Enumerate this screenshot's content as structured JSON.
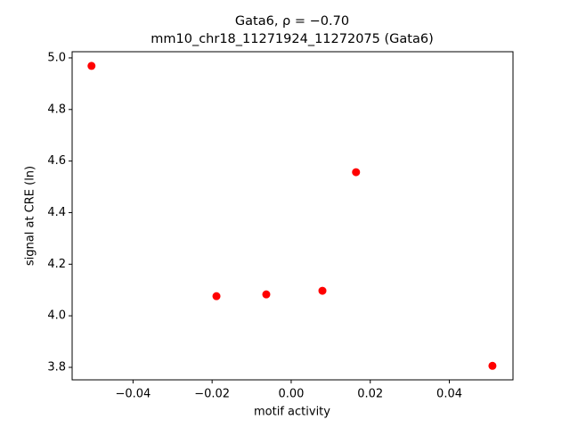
{
  "chart_data": {
    "type": "scatter",
    "title": "Gata6, ρ = −0.70",
    "subtitle": "mm10_chr18_11271924_11272075 (Gata6)",
    "x_label": "motif activity",
    "y_label": "signal at CRE (ln)",
    "x": [
      -0.0505,
      -0.0189,
      -0.0063,
      0.0079,
      0.0164,
      0.0509
    ],
    "values": [
      4.969,
      4.076,
      4.083,
      4.097,
      4.557,
      3.806
    ],
    "color": "#ff0000",
    "xlim": [
      -0.0554,
      0.0561
    ],
    "ylim": [
      3.7516,
      5.024
    ],
    "xticks": [
      {
        "value": -0.04,
        "label": "−0.04"
      },
      {
        "value": -0.02,
        "label": "−0.02"
      },
      {
        "value": 0,
        "label": "0.00"
      },
      0.02,
      0.04
    ],
    "yticks": [
      3.8,
      {
        "value": 4,
        "label": "4.0"
      },
      4.2,
      4.4,
      4.6,
      4.8,
      {
        "value": 5,
        "label": "5.0"
      }
    ],
    "grid": false
  }
}
